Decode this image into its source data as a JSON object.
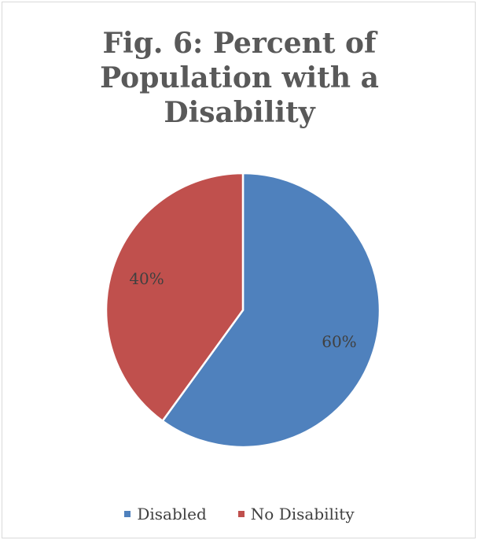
{
  "chart_data": {
    "type": "pie",
    "title_lines": [
      "Fig. 6: Percent of",
      "Population with a",
      "Disability"
    ],
    "categories": [
      "Disabled",
      "No Disability"
    ],
    "values": [
      60,
      40
    ],
    "data_labels": [
      "60%",
      "40%"
    ],
    "colors": [
      "#4f81bd",
      "#c0504d"
    ],
    "legend_position": "bottom",
    "start_angle_deg": 0,
    "direction": "clockwise"
  }
}
